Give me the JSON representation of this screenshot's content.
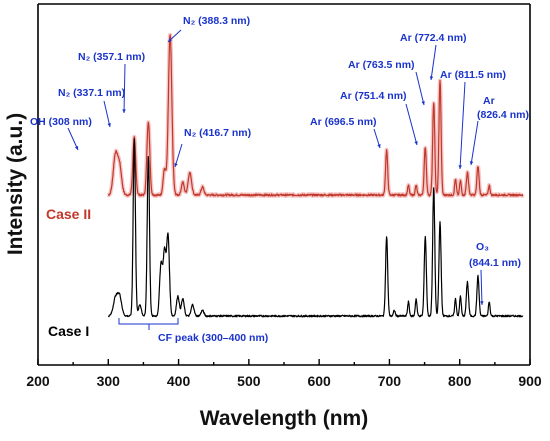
{
  "colors": {
    "case_ii": "#c0392b",
    "case_ii_shadow": "#f4b6b6",
    "case_i": "#000000",
    "annotation": "#1a33cc"
  },
  "chart_data": {
    "type": "line",
    "title": "",
    "xlabel": "Wavelength (nm)",
    "ylabel": "Intensity (a.u.)",
    "xlim": [
      200,
      900
    ],
    "xticks": [
      200,
      300,
      400,
      500,
      600,
      700,
      800,
      900
    ],
    "y_tick_labels": false,
    "grid": false,
    "series": [
      {
        "name": "Case II",
        "color": "#c0392b",
        "baseline": 0.6,
        "peaks": [
          {
            "x": 310,
            "h": 0.12,
            "w": 3
          },
          {
            "x": 316,
            "h": 0.09,
            "w": 3
          },
          {
            "x": 337,
            "h": 0.18,
            "w": 2
          },
          {
            "x": 357,
            "h": 0.23,
            "w": 2
          },
          {
            "x": 380,
            "h": 0.08,
            "w": 2
          },
          {
            "x": 388,
            "h": 0.5,
            "w": 2.5
          },
          {
            "x": 406,
            "h": 0.04,
            "w": 2
          },
          {
            "x": 416,
            "h": 0.07,
            "w": 2.5
          },
          {
            "x": 434,
            "h": 0.025,
            "w": 2
          },
          {
            "x": 696,
            "h": 0.14,
            "w": 1.5
          },
          {
            "x": 727,
            "h": 0.03,
            "w": 1.2
          },
          {
            "x": 738,
            "h": 0.03,
            "w": 1.2
          },
          {
            "x": 751,
            "h": 0.15,
            "w": 1.5
          },
          {
            "x": 763,
            "h": 0.29,
            "w": 1.5
          },
          {
            "x": 772,
            "h": 0.36,
            "w": 1.5
          },
          {
            "x": 794,
            "h": 0.05,
            "w": 1.2
          },
          {
            "x": 801,
            "h": 0.045,
            "w": 1.2
          },
          {
            "x": 811,
            "h": 0.07,
            "w": 1.5
          },
          {
            "x": 826,
            "h": 0.09,
            "w": 1.5
          },
          {
            "x": 842,
            "h": 0.03,
            "w": 1.2
          }
        ]
      },
      {
        "name": "Case I",
        "color": "#000000",
        "baseline": 0.03,
        "peaks": [
          {
            "x": 310,
            "h": 0.06,
            "w": 3
          },
          {
            "x": 316,
            "h": 0.07,
            "w": 3
          },
          {
            "x": 337,
            "h": 0.62,
            "w": 1.6
          },
          {
            "x": 345,
            "h": 0.04,
            "w": 2
          },
          {
            "x": 357,
            "h": 0.56,
            "w": 1.6
          },
          {
            "x": 375,
            "h": 0.18,
            "w": 2
          },
          {
            "x": 380,
            "h": 0.22,
            "w": 2
          },
          {
            "x": 385,
            "h": 0.28,
            "w": 2
          },
          {
            "x": 399,
            "h": 0.07,
            "w": 2
          },
          {
            "x": 406,
            "h": 0.06,
            "w": 2
          },
          {
            "x": 420,
            "h": 0.04,
            "w": 2
          },
          {
            "x": 434,
            "h": 0.02,
            "w": 2
          },
          {
            "x": 696,
            "h": 0.28,
            "w": 1.5
          },
          {
            "x": 707,
            "h": 0.02,
            "w": 1.2
          },
          {
            "x": 727,
            "h": 0.05,
            "w": 1.2
          },
          {
            "x": 738,
            "h": 0.06,
            "w": 1.2
          },
          {
            "x": 751,
            "h": 0.28,
            "w": 1.5
          },
          {
            "x": 763,
            "h": 0.45,
            "w": 1.5
          },
          {
            "x": 772,
            "h": 0.33,
            "w": 1.5
          },
          {
            "x": 794,
            "h": 0.06,
            "w": 1.2
          },
          {
            "x": 801,
            "h": 0.07,
            "w": 1.2
          },
          {
            "x": 811,
            "h": 0.12,
            "w": 1.5
          },
          {
            "x": 826,
            "h": 0.14,
            "w": 1.5
          },
          {
            "x": 842,
            "h": 0.05,
            "w": 1.2
          }
        ]
      }
    ],
    "case_labels": [
      "Case II",
      "Case I"
    ],
    "annotations": [
      {
        "name": "OH",
        "text": "OH (308 nm)",
        "x": 308,
        "series": "Case II"
      },
      {
        "name": "N2-337",
        "text": "N₂ (337.1 nm)",
        "x": 337.1,
        "series": "Case II"
      },
      {
        "name": "N2-357",
        "text": "N₂ (357.1 nm)",
        "x": 357.1,
        "series": "Case II"
      },
      {
        "name": "N2-388",
        "text": "N₂ (388.3 nm)",
        "x": 388.3,
        "series": "Case II"
      },
      {
        "name": "N2-416",
        "text": "N₂ (416.7 nm)",
        "x": 416.7,
        "series": "Case II"
      },
      {
        "name": "Ar-696",
        "text": "Ar (696.5 nm)",
        "x": 696.5,
        "series": "Case II"
      },
      {
        "name": "Ar-751",
        "text": "Ar (751.4 nm)",
        "x": 751.4,
        "series": "Case II"
      },
      {
        "name": "Ar-763",
        "text": "Ar (763.5 nm)",
        "x": 763.5,
        "series": "Case II"
      },
      {
        "name": "Ar-772",
        "text": "Ar (772.4 nm)",
        "x": 772.4,
        "series": "Case II"
      },
      {
        "name": "Ar-811",
        "text": "Ar (811.5 nm)",
        "x": 811.5,
        "series": "Case II"
      },
      {
        "name": "Ar-826-line1",
        "text": "Ar",
        "x": 826.4,
        "series": "Case II"
      },
      {
        "name": "Ar-826-line2",
        "text": "(826.4 nm)",
        "x": 826.4,
        "series": "Case II"
      },
      {
        "name": "O3-line1",
        "text": "O₃",
        "x": 844.1,
        "series": "Case I"
      },
      {
        "name": "O3-line2",
        "text": "(844.1 nm)",
        "x": 844.1,
        "series": "Case I"
      }
    ],
    "bracket": {
      "text": "CF peak (300–400 nm)",
      "x_start": 300,
      "x_end": 400
    }
  }
}
